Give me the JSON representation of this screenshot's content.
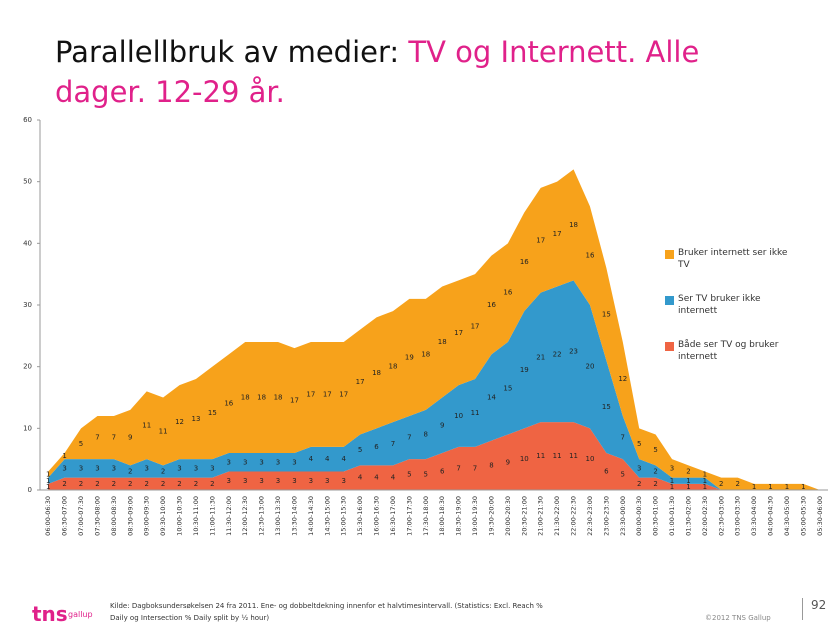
{
  "title": {
    "lead": "Parallellbruk av medier:",
    "rest": "TV og Internett. Alle dager. 12-29 år."
  },
  "chart_data": {
    "type": "stacked_area",
    "categories": [
      "06:00-06:30",
      "06:30-07:00",
      "07:00-07:30",
      "07:30-08:00",
      "08:00-08:30",
      "08:30-09:00",
      "09:00-09:30",
      "09:30-10:00",
      "10:00-10:30",
      "10:30-11:00",
      "11:00-11:30",
      "11:30-12:00",
      "12:00-12:30",
      "12:30-13:00",
      "13:00-13:30",
      "13:30-14:00",
      "14:00-14:30",
      "14:30-15:00",
      "15:00-15:30",
      "15:30-16:00",
      "16:00-16:30",
      "16:30-17:00",
      "17:00-17:30",
      "17:30-18:00",
      "18:00-18:30",
      "18:30-19:00",
      "19:00-19:30",
      "19:30-20:00",
      "20:00-20:30",
      "20:30-21:00",
      "21:00-21:30",
      "21:30-22:00",
      "22:00-22:30",
      "22:30-23:00",
      "23:00-23:30",
      "23:30-00:00",
      "00:00-00:30",
      "00:30-01:00",
      "01:00-01:30",
      "01:30-02:00",
      "02:00-02:30",
      "02:30-03:00",
      "03:00-03:30",
      "03:30-04:00",
      "04:00-04:30",
      "04:30-05:00",
      "05:00-05:30",
      "05:30-06:00"
    ],
    "series": [
      {
        "name": "Bruker internett ser ikke TV",
        "color": "#f7a21b",
        "values": [
          1,
          1,
          5,
          7,
          7,
          9,
          11,
          11,
          12,
          13,
          15,
          16,
          18,
          18,
          18,
          17,
          17,
          17,
          17,
          17,
          18,
          18,
          19,
          18,
          18,
          17,
          17,
          16,
          16,
          16,
          17,
          17,
          18,
          16,
          15,
          12,
          5,
          5,
          3,
          2,
          1,
          2,
          2,
          1,
          1,
          1,
          1,
          0
        ]
      },
      {
        "name": "Ser TV bruker ikke internett",
        "color": "#3399cc",
        "values": [
          1,
          3,
          3,
          3,
          3,
          2,
          3,
          2,
          3,
          3,
          3,
          3,
          3,
          3,
          3,
          3,
          4,
          4,
          4,
          5,
          6,
          7,
          7,
          8,
          9,
          10,
          11,
          14,
          15,
          19,
          21,
          22,
          23,
          20,
          15,
          7,
          3,
          2,
          1,
          1,
          1,
          0,
          0,
          0,
          0,
          0,
          0,
          0
        ]
      },
      {
        "name": "Både ser TV og bruker internett",
        "color": "#ef6443",
        "values": [
          1,
          2,
          2,
          2,
          2,
          2,
          2,
          2,
          2,
          2,
          2,
          3,
          3,
          3,
          3,
          3,
          3,
          3,
          3,
          4,
          4,
          4,
          5,
          5,
          6,
          7,
          7,
          8,
          9,
          10,
          11,
          11,
          11,
          10,
          6,
          5,
          2,
          2,
          1,
          1,
          1,
          0,
          0,
          0,
          0,
          0,
          0,
          0
        ]
      }
    ],
    "ylim": [
      0,
      60
    ],
    "yticks": [
      0,
      10,
      20,
      30,
      40,
      50,
      60
    ],
    "grid": false,
    "legend": "right"
  },
  "footer": {
    "logo": "tns",
    "logo_sub": "gallup",
    "source": "Kilde: Dagboksundersøkelsen 24 fra 2011. Ene- og dobbeltdekning innenfor et halvtimesintervall. (Statistics: Excl. Reach % Daily og Intersection % Daily split by ½ hour)",
    "copyright": "©2012 TNS Gallup",
    "page": "92"
  }
}
